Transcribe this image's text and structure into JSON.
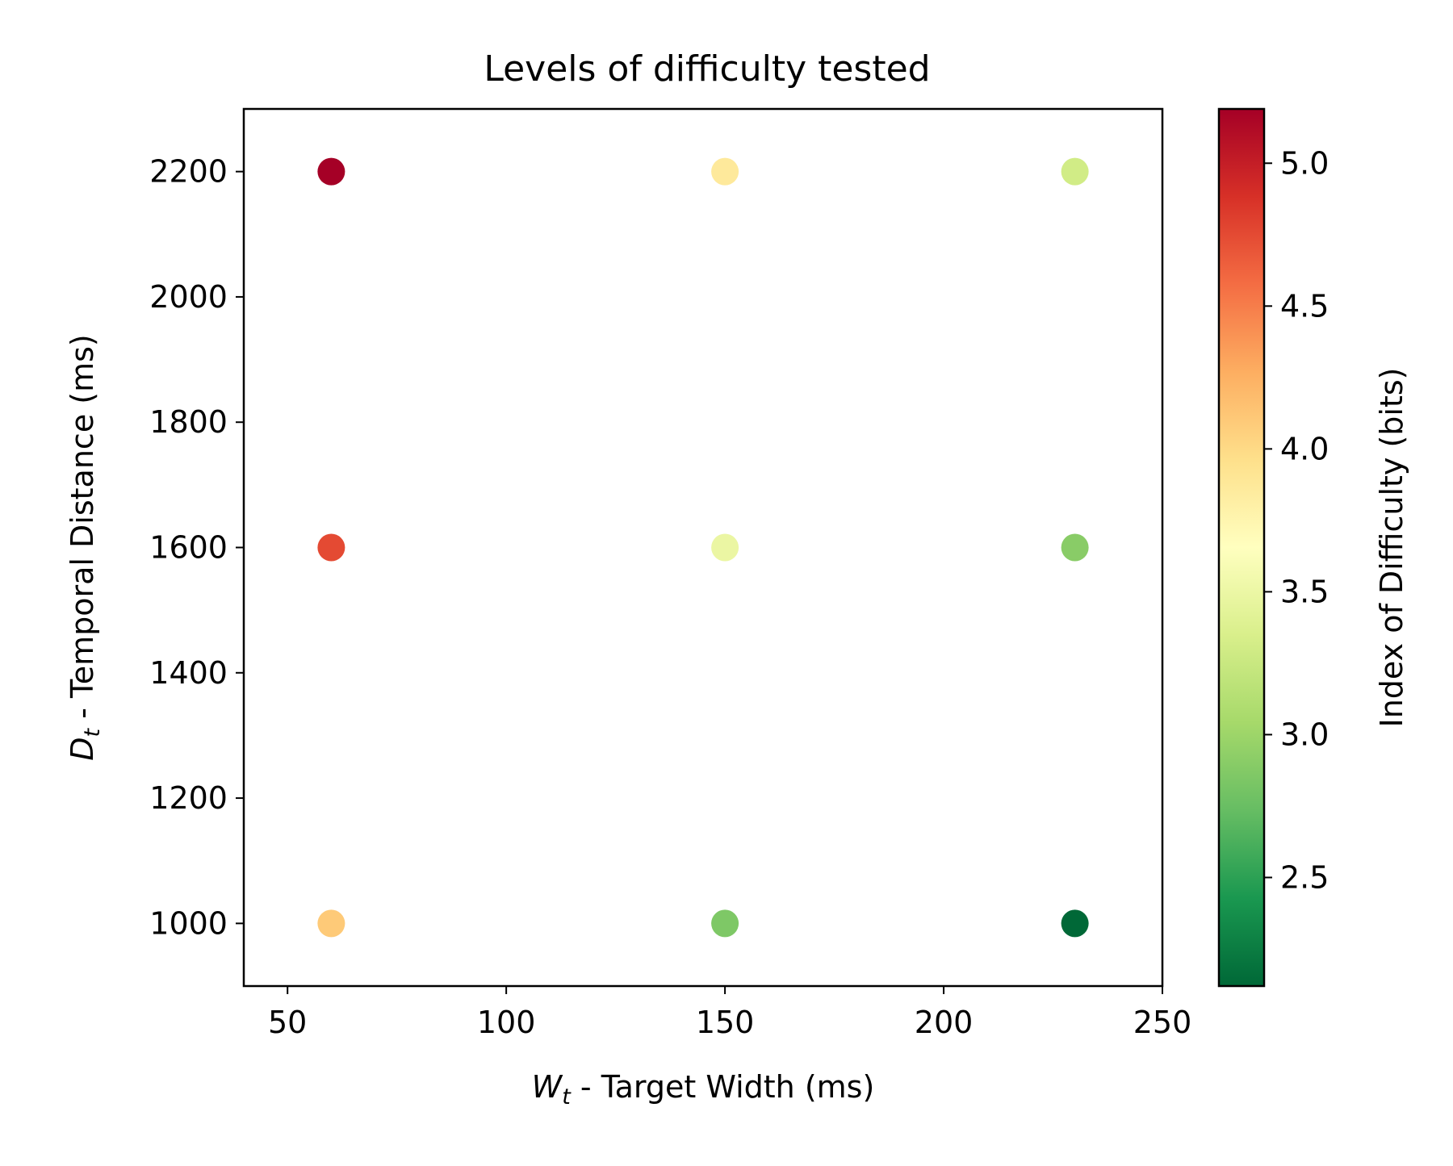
{
  "chart_data": {
    "type": "scatter",
    "title": "Levels of difficulty tested",
    "xlabel": {
      "var": "W",
      "sub": "t",
      "text": " - Target Width (ms)"
    },
    "ylabel": {
      "var": "D",
      "sub": "t",
      "text": " - Temporal Distance (ms)"
    },
    "xlim": [
      40,
      250
    ],
    "ylim": [
      900,
      2300
    ],
    "xticks": [
      50,
      100,
      150,
      200,
      250
    ],
    "yticks": [
      1000,
      1200,
      1400,
      1600,
      1800,
      2000,
      2200
    ],
    "grid": false,
    "points": [
      {
        "x": 60,
        "y": 2200,
        "id": 5.19
      },
      {
        "x": 150,
        "y": 2200,
        "id": 3.87
      },
      {
        "x": 230,
        "y": 2200,
        "id": 3.3
      },
      {
        "x": 60,
        "y": 1600,
        "id": 4.75
      },
      {
        "x": 150,
        "y": 1600,
        "id": 3.49
      },
      {
        "x": 230,
        "y": 1600,
        "id": 2.9
      },
      {
        "x": 60,
        "y": 1000,
        "id": 4.1
      },
      {
        "x": 150,
        "y": 1000,
        "id": 2.85
      },
      {
        "x": 230,
        "y": 1000,
        "id": 2.12
      }
    ],
    "colorbar": {
      "label": "Index of Difficulty (bits)",
      "colormap": "RdYlGn_r",
      "range": [
        2.12,
        5.19
      ],
      "ticks": [
        "2.5",
        "3.0",
        "3.5",
        "4.0",
        "4.5",
        "5.0"
      ],
      "stops": [
        "#006837",
        "#1a9850",
        "#66bd63",
        "#a6d96a",
        "#d9ef8b",
        "#ffffbf",
        "#fee08b",
        "#fdae61",
        "#f46d43",
        "#d73027",
        "#a50026"
      ]
    }
  }
}
